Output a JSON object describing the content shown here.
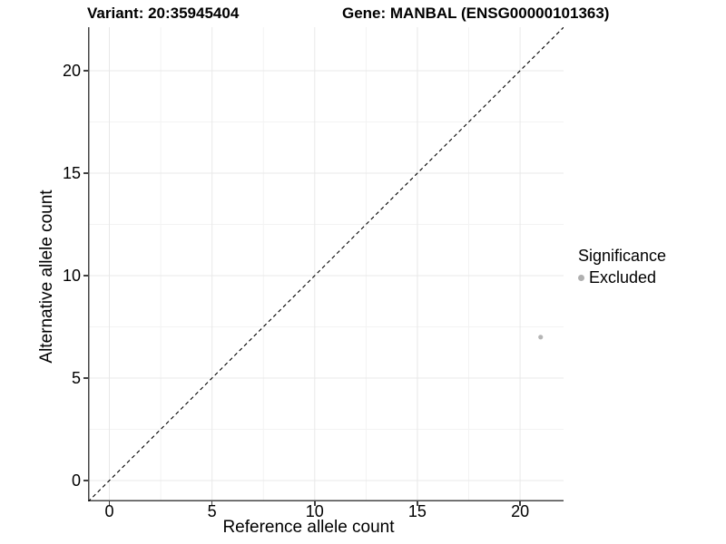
{
  "chart_data": {
    "type": "scatter",
    "titles": [
      "Variant: 20:35945404",
      "Gene: MANBAL (ENSG00000101363)"
    ],
    "xlabel": "Reference allele count",
    "ylabel": "Alternative allele count",
    "xlim": [
      -1.04,
      22.15
    ],
    "ylim": [
      -1.04,
      22.15
    ],
    "x_ticks": [
      0,
      5,
      10,
      15,
      20
    ],
    "y_ticks": [
      0,
      5,
      10,
      15,
      20
    ],
    "minor_ticks": [
      2.5,
      7.5,
      12.5,
      17.5
    ],
    "grid": "major+minor",
    "reference_line": {
      "type": "identity",
      "slope": 1,
      "intercept": 0,
      "style": "dashed",
      "color": "#000000"
    },
    "points": [
      {
        "x": 21,
        "y": 7,
        "significance": "Excluded",
        "color": "#b5b5b5"
      }
    ],
    "legend": {
      "title": "Significance",
      "position": "right",
      "items": [
        {
          "label": "Excluded",
          "color": "#b5b5b5",
          "marker": "circle"
        }
      ]
    },
    "colors": {
      "background": "#ffffff",
      "grid_major": "#e8e8e8",
      "grid_minor": "#f3f3f3",
      "axis_line": "#464646",
      "tick_mark": "#404040",
      "text": "#000000"
    }
  }
}
